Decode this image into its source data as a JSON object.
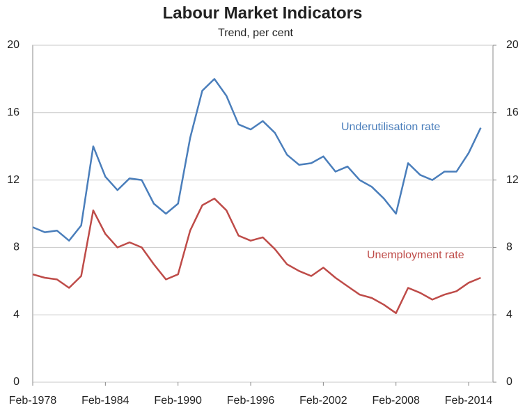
{
  "chart_data": {
    "type": "line",
    "title": "Labour Market Indicators",
    "subtitle": "Trend, per cent",
    "categories": [
      "Feb-1978",
      null,
      null,
      null,
      null,
      null,
      "Feb-1984",
      null,
      null,
      null,
      null,
      null,
      "Feb-1990",
      null,
      null,
      null,
      null,
      null,
      "Feb-1996",
      null,
      null,
      null,
      null,
      null,
      "Feb-2002",
      null,
      null,
      null,
      null,
      null,
      "Feb-2008",
      null,
      null,
      null,
      null,
      null,
      "Feb-2014",
      null
    ],
    "series": [
      {
        "name": "Underutilisation rate",
        "color": "#4a7ebb",
        "values": [
          9.2,
          8.9,
          9.0,
          8.4,
          9.3,
          14.0,
          12.2,
          11.4,
          12.1,
          12.0,
          10.6,
          10.0,
          10.6,
          14.5,
          17.3,
          18.0,
          17.0,
          15.3,
          15.0,
          15.5,
          14.8,
          13.5,
          12.9,
          13.0,
          13.4,
          12.5,
          12.8,
          12.0,
          11.6,
          10.9,
          10.0,
          13.0,
          12.3,
          12.0,
          12.5,
          12.5,
          13.6,
          15.1
        ]
      },
      {
        "name": "Unemployment rate",
        "color": "#be4b48",
        "values": [
          6.4,
          6.2,
          6.1,
          5.6,
          6.3,
          10.2,
          8.8,
          8.0,
          8.3,
          8.0,
          7.0,
          6.1,
          6.4,
          9.0,
          10.5,
          10.9,
          10.2,
          8.7,
          8.4,
          8.6,
          7.9,
          7.0,
          6.6,
          6.3,
          6.8,
          6.2,
          5.7,
          5.2,
          5.0,
          4.6,
          4.1,
          5.6,
          5.3,
          4.9,
          5.2,
          5.4,
          5.9,
          6.2
        ]
      }
    ],
    "ylim": [
      0,
      20
    ],
    "yticks": [
      0,
      4,
      8,
      12,
      16,
      20
    ],
    "y2lim": [
      0,
      20
    ],
    "y2ticks": [
      0,
      4,
      8,
      12,
      16,
      20
    ],
    "grid": true
  }
}
